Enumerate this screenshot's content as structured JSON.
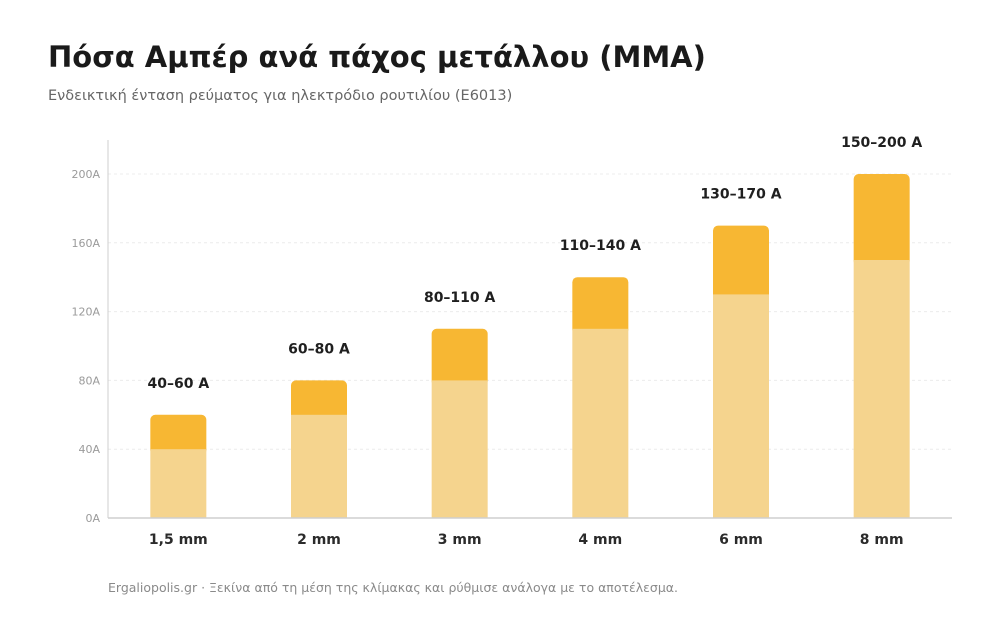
{
  "header": {
    "title": "Πόσα Αμπέρ ανά πάχος μετάλλου (MMA)",
    "subtitle": "Ενδεικτική ένταση ρεύματος για ηλεκτρόδιο ρουτιλίου (E6013)"
  },
  "footer": {
    "text": "Ergaliopolis.gr · Ξεκίνα από τη μέση της κλίμακας και ρύθμισε ανάλογα με το αποτέλεσμα."
  },
  "colors": {
    "min_range": "#f5d48e",
    "max_range": "#f7b733",
    "grid": "#ececec",
    "axis": "#cfcfcf"
  },
  "chart_data": {
    "type": "bar",
    "stacked": true,
    "categories": [
      "1,5 mm",
      "2 mm",
      "3 mm",
      "4 mm",
      "6 mm",
      "8 mm"
    ],
    "series": [
      {
        "values": [
          40,
          60,
          80,
          110,
          130,
          150
        ]
      },
      {
        "values": [
          20,
          20,
          30,
          30,
          40,
          50
        ]
      }
    ],
    "data_labels": [
      "40–60 A",
      "60–80 A",
      "80–110 A",
      "110–140 A",
      "130–170 A",
      "150–200 A"
    ],
    "y_ticks": [
      "0A",
      "40A",
      "80A",
      "120A",
      "160A",
      "200A"
    ],
    "y_tick_values": [
      0,
      40,
      80,
      120,
      160,
      200
    ],
    "ylim": [
      0,
      200
    ],
    "grid": true,
    "title": "Πόσα Αμπέρ ανά πάχος μετάλλου (MMA)",
    "subtitle": "Ενδεικτική ένταση ρεύματος για ηλεκτρόδιο ρουτιλίου (E6013)"
  }
}
